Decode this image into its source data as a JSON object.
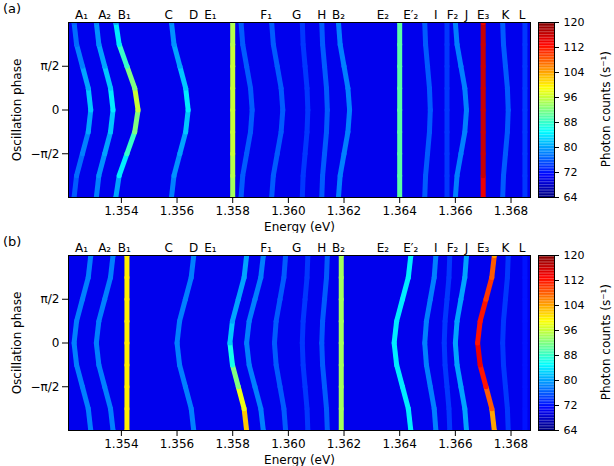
{
  "chart_data": [
    {
      "type": "heatmap",
      "title": "(a)",
      "x_label": "Energy (eV)",
      "y_label": "Oscillation phase",
      "xlim": [
        1.3521,
        1.3687
      ],
      "xticks": [
        1.354,
        1.356,
        1.358,
        {
          "value": 1.36,
          "label": "1.360"
        },
        1.362,
        1.364,
        1.366,
        1.368
      ],
      "ylim": [
        -3.1416,
        3.1416
      ],
      "yticks": [
        {
          "value": -1.5708,
          "label": "−π/2"
        },
        0,
        {
          "value": 1.5708,
          "label": "π/2"
        }
      ],
      "peak_labels": [
        {
          "value": 1.35257,
          "label": "A₁"
        },
        {
          "value": 1.3534,
          "label": "A₂"
        },
        {
          "value": 1.3541,
          "label": "B₁"
        },
        {
          "value": 1.3557,
          "label": "C"
        },
        {
          "value": 1.3566,
          "label": "D"
        },
        {
          "value": 1.3572,
          "label": "E₁"
        },
        {
          "value": 1.3592,
          "label": "F₁"
        },
        {
          "value": 1.3603,
          "label": "G"
        },
        {
          "value": 1.3612,
          "label": "H"
        },
        {
          "value": 1.3618,
          "label": "B₂"
        },
        {
          "value": 1.3634,
          "label": "E₂"
        },
        {
          "value": 1.3644,
          "label": "E′₂"
        },
        {
          "value": 1.3653,
          "label": "I"
        },
        {
          "value": 1.3659,
          "label": "F₂"
        },
        {
          "value": 1.3664,
          "label": "J"
        },
        {
          "value": 1.367,
          "label": "E₃"
        },
        {
          "value": 1.3678,
          "label": "K"
        },
        {
          "value": 1.3684,
          "label": "L"
        }
      ],
      "phase": [
        -3.1416,
        -2.3562,
        -1.5708,
        -0.7854,
        0,
        0.7854,
        1.5708,
        2.3562,
        3.1416
      ],
      "background_counts": 70,
      "lines": [
        {
          "name": "A₁",
          "energy": [
            1.3523,
            1.35239,
            1.3526,
            1.35281,
            1.3529,
            1.35281,
            1.3526,
            1.35239,
            1.3523
          ],
          "counts": [
            76,
            77,
            78,
            80,
            82,
            80,
            78,
            77,
            76
          ]
        },
        {
          "name": "A₂",
          "energy": [
            1.3531,
            1.35319,
            1.3534,
            1.35361,
            1.3537,
            1.35361,
            1.3534,
            1.35319,
            1.3531
          ],
          "counts": [
            78,
            79,
            80,
            82,
            84,
            82,
            80,
            79,
            78
          ]
        },
        {
          "name": "B₁",
          "energy": [
            1.3538,
            1.35392,
            1.3542,
            1.35448,
            1.3546,
            1.35448,
            1.3542,
            1.35392,
            1.3538
          ],
          "counts": [
            80,
            84,
            88,
            92,
            96,
            92,
            88,
            84,
            80
          ]
        },
        {
          "name": "C",
          "energy": [
            1.3558,
            1.35589,
            1.3561,
            1.35631,
            1.3564,
            1.35631,
            1.3561,
            1.35589,
            1.3558
          ],
          "counts": [
            78,
            79,
            80,
            82,
            84,
            82,
            80,
            79,
            78
          ]
        },
        {
          "name": "D",
          "energy": [
            1.358,
            1.358,
            1.358,
            1.358,
            1.358,
            1.358,
            1.358,
            1.358,
            1.358
          ],
          "counts": [
            94,
            95,
            96,
            96,
            96,
            96,
            96,
            95,
            94
          ]
        },
        {
          "name": "E₁",
          "energy": [
            1.3583,
            1.35836,
            1.3585,
            1.35864,
            1.3587,
            1.35864,
            1.3585,
            1.35836,
            1.3583
          ],
          "counts": [
            76,
            76,
            76,
            76,
            76,
            76,
            76,
            76,
            76
          ]
        },
        {
          "name": "F₁",
          "energy": [
            1.3594,
            1.35946,
            1.3596,
            1.35974,
            1.3598,
            1.35974,
            1.3596,
            1.35946,
            1.3594
          ],
          "counts": [
            76,
            76,
            76,
            76,
            76,
            76,
            76,
            76,
            76
          ]
        },
        {
          "name": "G",
          "energy": [
            1.3605,
            1.36053,
            1.3606,
            1.36067,
            1.3607,
            1.36067,
            1.3606,
            1.36053,
            1.3605
          ],
          "counts": [
            74,
            74,
            74,
            74,
            74,
            74,
            74,
            74,
            74
          ]
        },
        {
          "name": "H",
          "energy": [
            1.3612,
            1.36123,
            1.3613,
            1.36137,
            1.3614,
            1.36137,
            1.3613,
            1.36123,
            1.3612
          ],
          "counts": [
            76,
            76,
            76,
            76,
            76,
            76,
            76,
            76,
            76
          ]
        },
        {
          "name": "B₂",
          "energy": [
            1.3618,
            1.36186,
            1.362,
            1.36214,
            1.3622,
            1.36214,
            1.362,
            1.36186,
            1.3618
          ],
          "counts": [
            78,
            78,
            78,
            78,
            78,
            78,
            78,
            78,
            78
          ]
        },
        {
          "name": "E₂",
          "energy": [
            1.364,
            1.364,
            1.364,
            1.364,
            1.364,
            1.364,
            1.364,
            1.364,
            1.364
          ],
          "counts": [
            90,
            90,
            90,
            90,
            90,
            90,
            90,
            90,
            90
          ]
        },
        {
          "name": "E′₂",
          "energy": [
            1.3649,
            1.36493,
            1.365,
            1.36507,
            1.3651,
            1.36507,
            1.365,
            1.36493,
            1.3649
          ],
          "counts": [
            76,
            76,
            76,
            76,
            76,
            76,
            76,
            76,
            76
          ]
        },
        {
          "name": "I",
          "energy": [
            1.3657,
            1.3657,
            1.3657,
            1.3657,
            1.3657,
            1.3657,
            1.3657,
            1.3657,
            1.3657
          ],
          "counts": [
            74,
            74,
            74,
            74,
            74,
            74,
            74,
            74,
            74
          ]
        },
        {
          "name": "F₂",
          "energy": [
            1.366,
            1.36606,
            1.3662,
            1.36634,
            1.3664,
            1.36634,
            1.3662,
            1.36606,
            1.366
          ],
          "counts": [
            78,
            78,
            78,
            78,
            78,
            78,
            78,
            78,
            78
          ]
        },
        {
          "name": "E₃",
          "energy": [
            1.367,
            1.367,
            1.367,
            1.367,
            1.367,
            1.367,
            1.367,
            1.367,
            1.367
          ],
          "counts": [
            114,
            116,
            116,
            116,
            116,
            116,
            116,
            116,
            114
          ]
        },
        {
          "name": "K",
          "energy": [
            1.3677,
            1.36773,
            1.3678,
            1.36787,
            1.3679,
            1.36787,
            1.3678,
            1.36773,
            1.3677
          ],
          "counts": [
            76,
            76,
            76,
            76,
            76,
            76,
            76,
            76,
            76
          ]
        },
        {
          "name": "L",
          "energy": [
            1.3685,
            1.3685,
            1.3685,
            1.3685,
            1.3685,
            1.3685,
            1.3685,
            1.3685,
            1.3685
          ],
          "counts": [
            74,
            74,
            74,
            74,
            74,
            74,
            74,
            74,
            74
          ]
        }
      ],
      "colorbar": {
        "label": "Photon counts (s⁻¹)",
        "range": [
          64,
          120
        ],
        "ticks": [
          64,
          72,
          80,
          88,
          96,
          104,
          112,
          120
        ]
      }
    },
    {
      "type": "heatmap",
      "title": "(b)",
      "x_label": "Energy (eV)",
      "y_label": "Oscillation phase",
      "xlim": [
        1.3521,
        1.3687
      ],
      "xticks": [
        1.354,
        1.356,
        1.358,
        {
          "value": 1.36,
          "label": "1.360"
        },
        1.362,
        1.364,
        1.366,
        1.368
      ],
      "ylim": [
        -3.1416,
        3.1416
      ],
      "yticks": [
        {
          "value": -1.5708,
          "label": "−π/2"
        },
        0,
        {
          "value": 1.5708,
          "label": "π/2"
        }
      ],
      "peak_labels": [
        {
          "value": 1.35257,
          "label": "A₁"
        },
        {
          "value": 1.3534,
          "label": "A₂"
        },
        {
          "value": 1.3541,
          "label": "B₁"
        },
        {
          "value": 1.3557,
          "label": "C"
        },
        {
          "value": 1.3566,
          "label": "D"
        },
        {
          "value": 1.3572,
          "label": "E₁"
        },
        {
          "value": 1.3592,
          "label": "F₁"
        },
        {
          "value": 1.3603,
          "label": "G"
        },
        {
          "value": 1.3612,
          "label": "H"
        },
        {
          "value": 1.3618,
          "label": "B₂"
        },
        {
          "value": 1.3634,
          "label": "E₂"
        },
        {
          "value": 1.3644,
          "label": "E′₂"
        },
        {
          "value": 1.3653,
          "label": "I"
        },
        {
          "value": 1.3659,
          "label": "F₂"
        },
        {
          "value": 1.3664,
          "label": "J"
        },
        {
          "value": 1.367,
          "label": "E₃"
        },
        {
          "value": 1.3678,
          "label": "K"
        },
        {
          "value": 1.3684,
          "label": "L"
        }
      ],
      "phase": [
        -3.1416,
        -2.3562,
        -1.5708,
        -0.7854,
        0,
        0.7854,
        1.5708,
        2.3562,
        3.1416
      ],
      "background_counts": 70,
      "lines": [
        {
          "name": "A₁",
          "energy": [
            1.3529,
            1.35281,
            1.3526,
            1.35239,
            1.3523,
            1.35239,
            1.3526,
            1.35281,
            1.3529
          ],
          "counts": [
            78,
            78,
            78,
            78,
            78,
            78,
            78,
            78,
            78
          ]
        },
        {
          "name": "A₂",
          "energy": [
            1.3537,
            1.35361,
            1.3534,
            1.35319,
            1.3531,
            1.35319,
            1.3534,
            1.35361,
            1.3537
          ],
          "counts": [
            78,
            78,
            78,
            78,
            78,
            78,
            78,
            78,
            78
          ]
        },
        {
          "name": "B₁",
          "energy": [
            1.3542,
            1.3542,
            1.3542,
            1.3542,
            1.3542,
            1.3542,
            1.3542,
            1.3542,
            1.3542
          ],
          "counts": [
            100,
            100,
            100,
            100,
            100,
            100,
            100,
            100,
            100
          ]
        },
        {
          "name": "C",
          "energy": [
            1.3566,
            1.35651,
            1.3563,
            1.35609,
            1.356,
            1.35609,
            1.3563,
            1.35651,
            1.3566
          ],
          "counts": [
            78,
            78,
            78,
            78,
            78,
            78,
            78,
            78,
            78
          ]
        },
        {
          "name": "D",
          "energy": [
            1.3585,
            1.35841,
            1.3582,
            1.35799,
            1.3579,
            1.35799,
            1.3582,
            1.35841,
            1.3585
          ],
          "counts": [
            102,
            98,
            92,
            86,
            82,
            80,
            80,
            80,
            80
          ]
        },
        {
          "name": "E₁",
          "energy": [
            1.3591,
            1.35901,
            1.3588,
            1.35859,
            1.3585,
            1.35859,
            1.3588,
            1.35901,
            1.3591
          ],
          "counts": [
            78,
            78,
            78,
            78,
            78,
            78,
            78,
            78,
            78
          ]
        },
        {
          "name": "F₁",
          "energy": [
            1.3599,
            1.35984,
            1.3597,
            1.35956,
            1.3595,
            1.35956,
            1.3597,
            1.35984,
            1.3599
          ],
          "counts": [
            76,
            76,
            76,
            76,
            76,
            76,
            76,
            76,
            76
          ]
        },
        {
          "name": "G",
          "energy": [
            1.3607,
            1.36067,
            1.3606,
            1.36053,
            1.3605,
            1.36053,
            1.3606,
            1.36067,
            1.3607
          ],
          "counts": [
            74,
            74,
            74,
            74,
            74,
            74,
            74,
            74,
            74
          ]
        },
        {
          "name": "H",
          "energy": [
            1.3614,
            1.36137,
            1.3613,
            1.36123,
            1.3612,
            1.36123,
            1.3613,
            1.36137,
            1.3614
          ],
          "counts": [
            76,
            76,
            76,
            76,
            76,
            76,
            76,
            76,
            76
          ]
        },
        {
          "name": "B₂",
          "energy": [
            1.3619,
            1.3619,
            1.3619,
            1.3619,
            1.3619,
            1.3619,
            1.3619,
            1.3619,
            1.3619
          ],
          "counts": [
            94,
            94,
            94,
            94,
            94,
            94,
            94,
            94,
            94
          ]
        },
        {
          "name": "E₂",
          "energy": [
            1.3644,
            1.36431,
            1.3641,
            1.36389,
            1.3638,
            1.36389,
            1.3641,
            1.36431,
            1.3644
          ],
          "counts": [
            84,
            84,
            84,
            84,
            84,
            84,
            84,
            84,
            84
          ]
        },
        {
          "name": "E′₂",
          "energy": [
            1.3653,
            1.36524,
            1.3651,
            1.36496,
            1.3649,
            1.36496,
            1.3651,
            1.36524,
            1.3653
          ],
          "counts": [
            78,
            78,
            78,
            78,
            78,
            78,
            78,
            78,
            78
          ]
        },
        {
          "name": "I",
          "energy": [
            1.3658,
            1.36577,
            1.3657,
            1.36563,
            1.3656,
            1.36563,
            1.3657,
            1.36577,
            1.3658
          ],
          "counts": [
            74,
            74,
            74,
            74,
            74,
            74,
            74,
            74,
            74
          ]
        },
        {
          "name": "F₂",
          "energy": [
            1.3664,
            1.36634,
            1.3662,
            1.36606,
            1.366,
            1.36606,
            1.3662,
            1.36634,
            1.3664
          ],
          "counts": [
            80,
            80,
            80,
            80,
            80,
            80,
            80,
            80,
            80
          ]
        },
        {
          "name": "E₃",
          "energy": [
            1.3674,
            1.36731,
            1.3671,
            1.36689,
            1.3668,
            1.36689,
            1.3671,
            1.36731,
            1.3674
          ],
          "counts": [
            104,
            108,
            112,
            114,
            112,
            112,
            110,
            108,
            104
          ]
        },
        {
          "name": "K",
          "energy": [
            1.3679,
            1.36787,
            1.3678,
            1.36773,
            1.3677,
            1.36773,
            1.3678,
            1.36787,
            1.3679
          ],
          "counts": [
            74,
            74,
            74,
            74,
            74,
            74,
            74,
            74,
            74
          ]
        },
        {
          "name": "L",
          "energy": [
            1.3685,
            1.3685,
            1.3685,
            1.3685,
            1.3685,
            1.3685,
            1.3685,
            1.3685,
            1.3685
          ],
          "counts": [
            72,
            72,
            72,
            72,
            72,
            72,
            72,
            72,
            72
          ]
        }
      ],
      "colorbar": {
        "label": "Photon counts (s⁻¹)",
        "range": [
          64,
          120
        ],
        "ticks": [
          64,
          72,
          80,
          88,
          96,
          104,
          112,
          120
        ]
      }
    }
  ]
}
